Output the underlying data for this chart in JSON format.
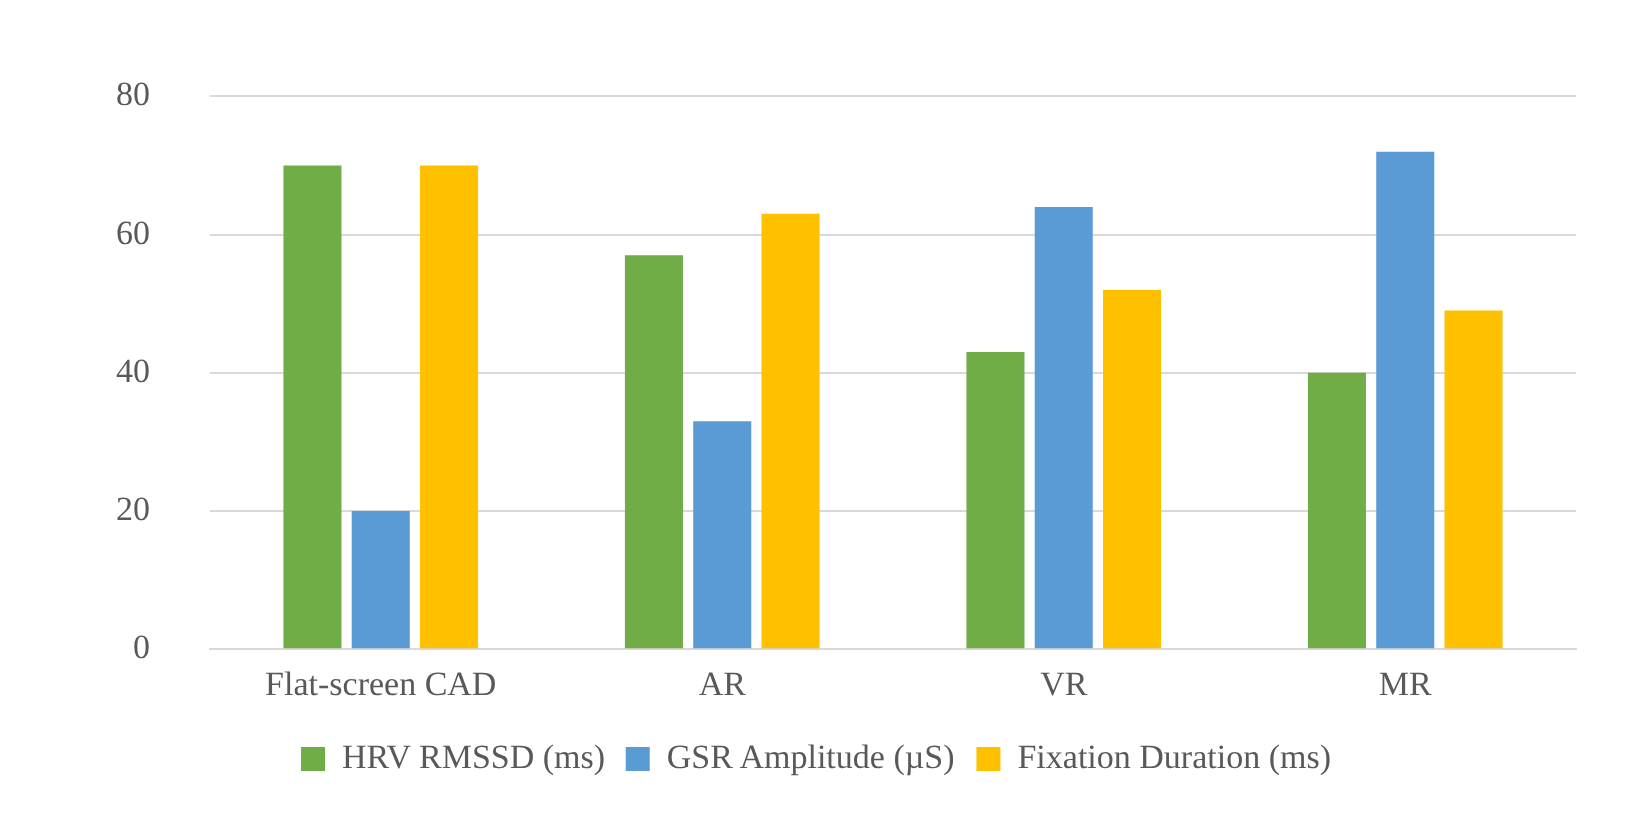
{
  "chart_data": {
    "type": "bar",
    "categories": [
      "Flat-screen CAD",
      "AR",
      "VR",
      "MR"
    ],
    "series": [
      {
        "name": "HRV RMSSD (ms)",
        "color": "#70ad47",
        "values": [
          70,
          57,
          43,
          40
        ]
      },
      {
        "name": "GSR Amplitude (µS)",
        "color": "#5b9bd5",
        "values": [
          20,
          33,
          64,
          72
        ]
      },
      {
        "name": "Fixation Duration (ms)",
        "color": "#ffc000",
        "values": [
          70,
          63,
          52,
          49
        ]
      }
    ],
    "ylim": [
      0,
      80
    ],
    "yticks": [
      0,
      20,
      40,
      60,
      80
    ],
    "grid": "y",
    "legend": "bottom"
  }
}
